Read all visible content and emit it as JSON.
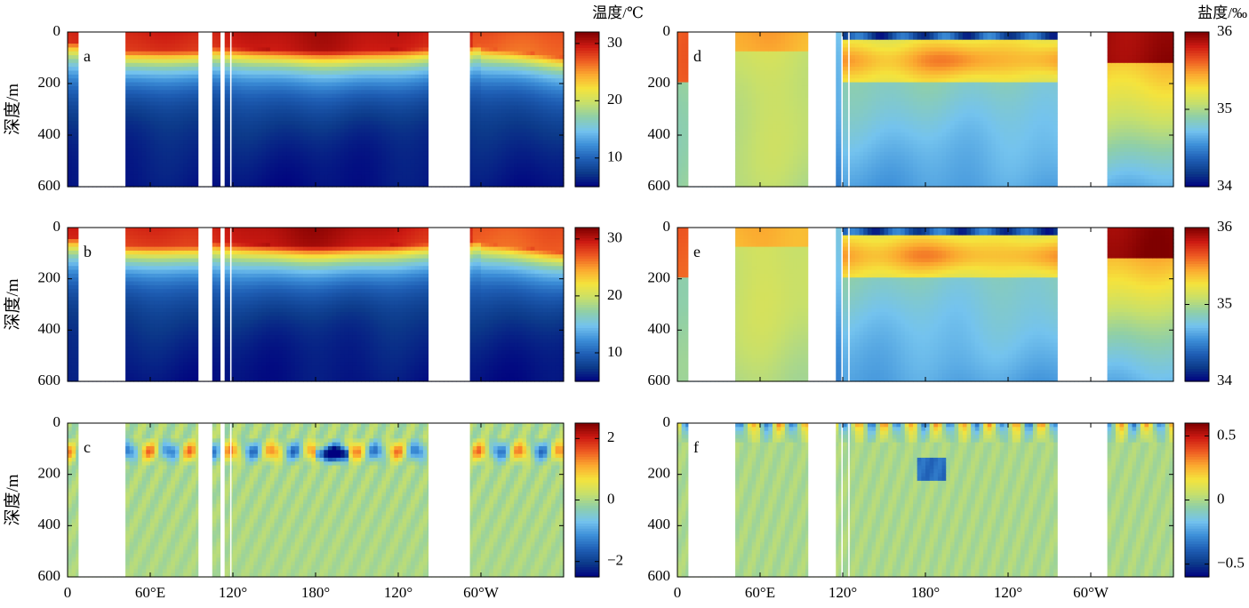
{
  "colorbar_titles": {
    "temperature": "温度/℃",
    "salinity": "盐度/‰"
  },
  "ylabel": "深度/m",
  "x_tick_labels": [
    "0",
    "60°E",
    "120°",
    "180°",
    "120°",
    "60°W"
  ],
  "colors": {
    "land": "#ffffff",
    "colormap": [
      "#00007f",
      "#0c3a8a",
      "#1f5fb5",
      "#3d8fd8",
      "#74c3ee",
      "#8fcfa8",
      "#c8e06a",
      "#f5e33c",
      "#fba930",
      "#ee5a22",
      "#cc1a12",
      "#7f0000"
    ]
  },
  "chart_data": [
    {
      "type": "heatmap",
      "panel": "a",
      "quantity": "temperature",
      "x_range": [
        0,
        360
      ],
      "y_range": [
        600,
        0
      ],
      "y_ticks": [
        0,
        200,
        400,
        600
      ],
      "x_ticks": [
        0,
        60,
        120,
        180,
        240,
        300
      ],
      "colorbar": {
        "range": [
          5,
          32
        ],
        "ticks": [
          10,
          20,
          30
        ]
      },
      "missing_longitudes": [
        [
          8,
          42
        ],
        [
          95,
          105
        ],
        [
          111,
          114
        ],
        [
          118,
          119
        ],
        [
          262,
          292
        ]
      ]
    },
    {
      "type": "heatmap",
      "panel": "b",
      "quantity": "temperature",
      "x_range": [
        0,
        360
      ],
      "y_range": [
        600,
        0
      ],
      "y_ticks": [
        0,
        200,
        400,
        600
      ],
      "x_ticks": [
        0,
        60,
        120,
        180,
        240,
        300
      ],
      "colorbar": {
        "range": [
          5,
          32
        ],
        "ticks": [
          10,
          20,
          30
        ]
      },
      "missing_longitudes": [
        [
          8,
          42
        ],
        [
          95,
          105
        ],
        [
          111,
          114
        ],
        [
          118,
          119
        ],
        [
          262,
          292
        ]
      ]
    },
    {
      "type": "heatmap",
      "panel": "c",
      "quantity": "temperature difference",
      "x_range": [
        0,
        360
      ],
      "y_range": [
        600,
        0
      ],
      "y_ticks": [
        0,
        200,
        400,
        600
      ],
      "x_ticks": [
        0,
        60,
        120,
        180,
        240,
        300
      ],
      "colorbar": {
        "range": [
          -2.5,
          2.5
        ],
        "ticks": [
          -2,
          0,
          2
        ]
      },
      "missing_longitudes": [
        [
          8,
          42
        ],
        [
          95,
          105
        ],
        [
          111,
          114
        ],
        [
          118,
          119
        ],
        [
          262,
          292
        ]
      ]
    },
    {
      "type": "heatmap",
      "panel": "d",
      "quantity": "salinity",
      "x_range": [
        0,
        360
      ],
      "y_range": [
        600,
        0
      ],
      "y_ticks": [
        0,
        200,
        400,
        600
      ],
      "x_ticks": [
        0,
        60,
        120,
        180,
        240,
        300
      ],
      "colorbar": {
        "range": [
          34,
          36
        ],
        "ticks": [
          34,
          35,
          36
        ]
      },
      "missing_longitudes": [
        [
          8,
          42
        ],
        [
          95,
          115
        ],
        [
          119,
          120
        ],
        [
          124,
          125
        ],
        [
          276,
          312
        ]
      ]
    },
    {
      "type": "heatmap",
      "panel": "e",
      "quantity": "salinity",
      "x_range": [
        0,
        360
      ],
      "y_range": [
        600,
        0
      ],
      "y_ticks": [
        0,
        200,
        400,
        600
      ],
      "x_ticks": [
        0,
        60,
        120,
        180,
        240,
        300
      ],
      "colorbar": {
        "range": [
          34,
          36
        ],
        "ticks": [
          34,
          35,
          36
        ]
      },
      "missing_longitudes": [
        [
          8,
          42
        ],
        [
          95,
          115
        ],
        [
          119,
          120
        ],
        [
          124,
          125
        ],
        [
          276,
          312
        ]
      ]
    },
    {
      "type": "heatmap",
      "panel": "f",
      "quantity": "salinity difference",
      "x_range": [
        0,
        360
      ],
      "y_range": [
        600,
        0
      ],
      "y_ticks": [
        0,
        200,
        400,
        600
      ],
      "x_ticks": [
        0,
        60,
        120,
        180,
        240,
        300
      ],
      "colorbar": {
        "range": [
          -0.6,
          0.6
        ],
        "ticks": [
          -0.5,
          0,
          0.5
        ]
      },
      "missing_longitudes": [
        [
          8,
          42
        ],
        [
          95,
          115
        ],
        [
          119,
          120
        ],
        [
          124,
          125
        ],
        [
          276,
          312
        ]
      ]
    }
  ]
}
